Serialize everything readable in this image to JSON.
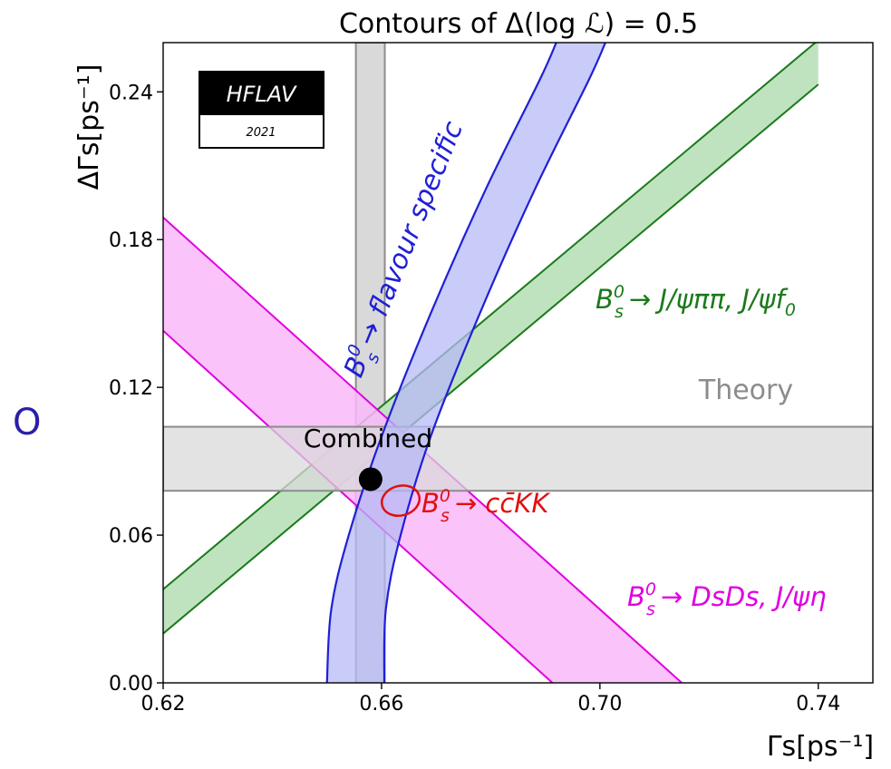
{
  "chart_data": {
    "type": "line",
    "title": "Contours of Δ(log ℒ) = 0.5",
    "xlabel": "Γs[ps⁻¹]",
    "ylabel": "ΔΓs[ps⁻¹]",
    "xlim": [
      0.62,
      0.75
    ],
    "ylim": [
      0.0,
      0.26
    ],
    "xticks": [
      0.62,
      0.66,
      0.7,
      0.74
    ],
    "xtick_labels": [
      "0.62",
      "0.66",
      "0.70",
      "0.74"
    ],
    "yticks": [
      0.0,
      0.06,
      0.12,
      0.18,
      0.24
    ],
    "ytick_labels": [
      "0.00",
      "0.06",
      "0.12",
      "0.18",
      "0.24"
    ],
    "grid": false,
    "logo": {
      "name": "HFLAV",
      "year": "2021"
    },
    "series": [
      {
        "name": "Theory",
        "kind": "cross-bands",
        "color": "#8c8c8c",
        "fill": "#d9d9d9",
        "vertical_band_x": [
          0.6553,
          0.6606
        ],
        "horizontal_band_y": [
          0.078,
          0.104
        ]
      },
      {
        "name": "B0s → J/ψππ, J/ψf0",
        "kind": "band",
        "color": "#1a7a1a",
        "fill": "#bfe3bf",
        "upper": [
          [
            0.62,
            0.038
          ],
          [
            0.74,
            0.261
          ]
        ],
        "lower": [
          [
            0.62,
            0.02
          ],
          [
            0.74,
            0.243
          ]
        ]
      },
      {
        "name": "B0s → DsDs, J/ψη",
        "kind": "band",
        "color": "#e000e0",
        "fill": "#f9b9f9",
        "upper": [
          [
            0.62,
            0.189
          ],
          [
            0.715,
            0.0
          ]
        ],
        "lower": [
          [
            0.62,
            0.143
          ],
          [
            0.6913,
            0.0
          ]
        ]
      },
      {
        "name": "B0s → flavour specific",
        "kind": "band",
        "color": "#1f1fd6",
        "fill": "#b7b9f5",
        "left": [
          [
            0.65,
            0.0
          ],
          [
            0.6508,
            0.03
          ],
          [
            0.654,
            0.06
          ],
          [
            0.66,
            0.1
          ],
          [
            0.669,
            0.15
          ],
          [
            0.679,
            0.2
          ],
          [
            0.689,
            0.245
          ],
          [
            0.692,
            0.26
          ]
        ],
        "right": [
          [
            0.6605,
            0.0
          ],
          [
            0.6608,
            0.03
          ],
          [
            0.6635,
            0.06
          ],
          [
            0.669,
            0.1
          ],
          [
            0.678,
            0.15
          ],
          [
            0.688,
            0.2
          ],
          [
            0.698,
            0.245
          ],
          [
            0.701,
            0.26
          ]
        ]
      },
      {
        "name": "B0s → cc̄KK",
        "kind": "ellipse",
        "color": "#e01010",
        "center": [
          0.6635,
          0.074
        ],
        "radius": [
          0.0035,
          0.006
        ],
        "rotation_deg": -15
      },
      {
        "name": "Combined",
        "kind": "point",
        "color": "#000000",
        "x": 0.658,
        "y": 0.0827
      }
    ],
    "labels": {
      "theory": "Theory",
      "combined": "Combined",
      "flavour_prefix": "B",
      "flavour_rest": "→ flavour specific",
      "jpsi_prefix": "B",
      "jpsi_rest": "→ J/ψππ, J/ψf",
      "jpsi_sub0": "0",
      "ds_prefix": "B",
      "ds_rest": "→ DsDs, J/ψη",
      "cckk_prefix": "B",
      "cckk_rest": "→ cc̄KK",
      "sup0": "0",
      "sub_s": "s"
    }
  },
  "side_mark": "O"
}
